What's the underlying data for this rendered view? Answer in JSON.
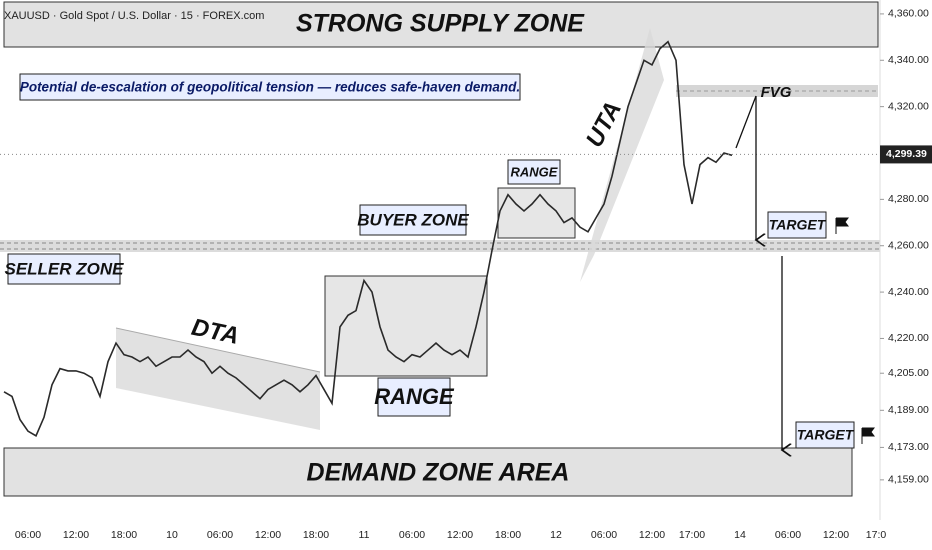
{
  "chart_data": {
    "type": "line",
    "title": "XAUUSD · Gold Spot / U.S. Dollar · 15 · FOREX.com",
    "color": "#2a2a2a",
    "categories": [
      null,
      null,
      null,
      "06:00",
      null,
      null,
      null,
      null,
      null,
      "12:00",
      null,
      null,
      null,
      null,
      null,
      "18:00",
      null,
      null,
      null,
      null,
      null,
      "10",
      null,
      null,
      null,
      null,
      null,
      "06:00",
      null,
      null,
      null,
      null,
      null,
      "12:00",
      null,
      null,
      null,
      null,
      null,
      "18:00",
      null,
      null,
      null,
      null,
      null,
      "11",
      null,
      null,
      null,
      null,
      null,
      "06:00",
      null,
      null,
      null,
      null,
      null,
      "12:00",
      null,
      null,
      null,
      null,
      null,
      "18:00",
      null,
      null,
      null,
      null,
      null,
      "12",
      null,
      null,
      null,
      null,
      null,
      "06:00",
      null,
      null,
      null,
      null,
      null,
      "12:00",
      null,
      null,
      null,
      null,
      "17:00",
      null,
      null,
      null,
      null,
      null,
      "14",
      null,
      null,
      null,
      null,
      null,
      "06:00",
      null,
      null,
      null,
      null,
      null,
      "12:00",
      null,
      null,
      null,
      null,
      "17:0",
      null
    ],
    "values": [
      4197,
      4195,
      4185,
      4180,
      4178,
      4186,
      4200,
      4207,
      4206,
      4206,
      4205,
      4203,
      4195,
      4210,
      4218,
      4213,
      4212,
      4210,
      4212,
      4208,
      4210,
      4212,
      4212,
      4215,
      4212,
      4210,
      4205,
      4208,
      4205,
      4203,
      4200,
      4197,
      4194,
      4198,
      4200,
      4202,
      4200,
      4197,
      4200,
      4204,
      4198,
      4192,
      4225,
      4230,
      4232,
      4245,
      4240,
      4225,
      4215,
      4212,
      4210,
      4213,
      4212,
      4215,
      4218,
      4215,
      4213,
      4215,
      4212,
      4225,
      4240,
      4258,
      4275,
      4282,
      4278,
      4275,
      4278,
      4282,
      4278,
      4275,
      4270,
      4272,
      4268,
      4266,
      4272,
      4278,
      4290,
      4305,
      4320,
      4330,
      4340,
      4338,
      4345,
      4348,
      4340,
      4295,
      4278,
      4295,
      4298,
      4296,
      4300,
      4299,
      null,
      null,
      null,
      null,
      null,
      null,
      null,
      null,
      null,
      null,
      null,
      null,
      null,
      null,
      null,
      null,
      null,
      null,
      null
    ],
    "ylim": [
      4146,
      4366
    ],
    "yticks": [
      {
        "value": 4360,
        "label": "4,360.00"
      },
      {
        "value": 4340,
        "label": "4,340.00"
      },
      {
        "value": 4320,
        "label": "4,320.00"
      },
      {
        "value": 4280,
        "label": "4,280.00"
      },
      {
        "value": 4260,
        "label": "4,260.00"
      },
      {
        "value": 4240,
        "label": "4,240.00"
      },
      {
        "value": 4220,
        "label": "4,220.00"
      },
      {
        "value": 4205,
        "label": "4,205.00"
      },
      {
        "value": 4189,
        "label": "4,189.00"
      },
      {
        "value": 4173,
        "label": "4,173.00"
      },
      {
        "value": 4159,
        "label": "4,159.00"
      }
    ],
    "last_price": {
      "value": 4299.39,
      "label": "4,299.39"
    },
    "annotations": {
      "supply": "STRONG SUPPLY ZONE",
      "note": "Potential de-escalation of geopolitical tension — reduces safe-haven demand.",
      "seller": "SELLER ZONE",
      "buyer": "BUYER ZONE",
      "dta": "DTA",
      "range1": "RANGE",
      "range2": "RANGE",
      "uta": "UTA",
      "fvg": "FVG",
      "target1": "TARGET",
      "target2": "TARGET",
      "demand": "DEMAND ZONE AREA"
    }
  }
}
